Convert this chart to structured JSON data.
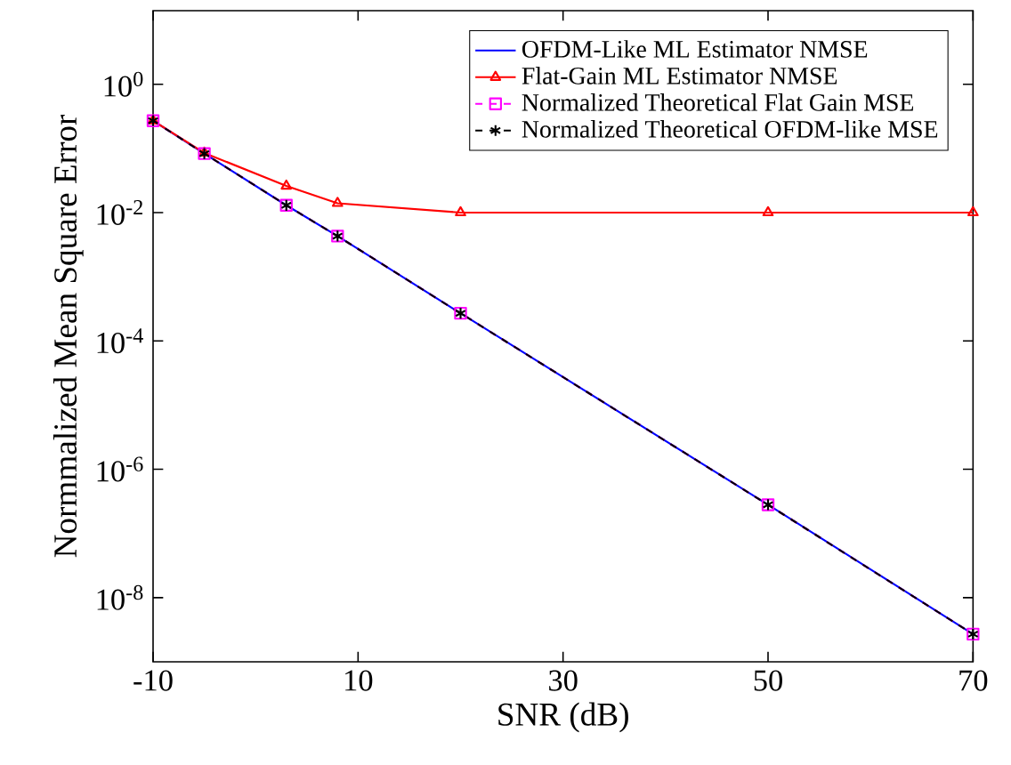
{
  "chart_data": {
    "type": "line",
    "xlabel": "SNR (dB)",
    "ylabel": "Normmalized Mean Square Error",
    "x": [
      -10,
      -5,
      3,
      8,
      20,
      50,
      70
    ],
    "series": [
      {
        "name": "OFDM-Like ML Estimator NMSE",
        "color": "#0000ff",
        "marker": "none",
        "line_style": "solid",
        "values": [
          0.27,
          0.083,
          0.013,
          0.0043,
          0.00027,
          2.8e-07,
          2.7e-09
        ]
      },
      {
        "name": "Flat-Gain ML Estimator NMSE",
        "color": "#ff0000",
        "marker": "triangle",
        "line_style": "solid",
        "values": [
          0.27,
          0.085,
          0.026,
          0.014,
          0.01,
          0.01,
          0.01
        ]
      },
      {
        "name": "Normalized Theoretical Flat Gain MSE",
        "color": "#ff00ff",
        "marker": "square",
        "line_style": "dashed",
        "values": [
          0.27,
          0.083,
          0.013,
          0.0043,
          0.00027,
          2.8e-07,
          2.7e-09
        ]
      },
      {
        "name": "Normalized Theoretical OFDM-like MSE",
        "color": "#000000",
        "marker": "cross",
        "line_style": "dashed",
        "values": [
          0.27,
          0.083,
          0.013,
          0.0043,
          0.00027,
          2.8e-07,
          2.7e-09
        ]
      }
    ],
    "xlim": [
      -10,
      70
    ],
    "xticks": [
      -10,
      10,
      30,
      50,
      70
    ],
    "log": "y",
    "ylim": [
      1e-09,
      14
    ],
    "yticks": [
      {
        "value": 1e-08,
        "label": "10$^{-8}$"
      },
      {
        "value": 1e-06,
        "label": "10$^{-6}$"
      },
      {
        "value": 0.0001,
        "label": "10$^{-4}$"
      },
      {
        "value": 0.01,
        "label": "10$^{-2}$"
      },
      {
        "value": 1,
        "label": "10$^{0}$"
      }
    ],
    "grid": false,
    "legend": "top right"
  }
}
